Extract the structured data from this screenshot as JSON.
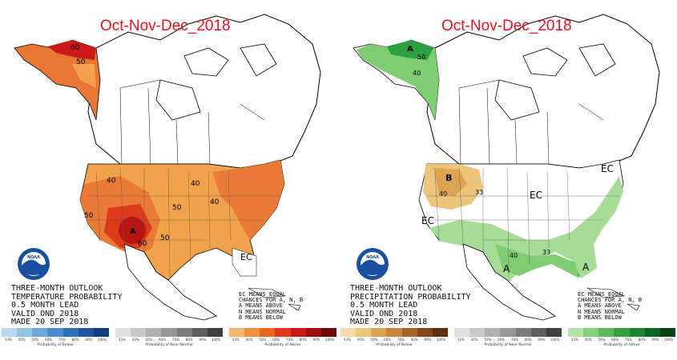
{
  "left_panel": {
    "title": "Oct-Nov-Dec_2018",
    "agency_logo": "noaa-logo",
    "outlook_lines": [
      "THREE-MONTH OUTLOOK",
      "TEMPERATURE PROBABILITY",
      "0.5 MONTH LEAD",
      "VALID OND 2018",
      "MADE 20 SEP 2018"
    ],
    "ec_legend_lines": [
      "EC MEANS EQUAL",
      "CHANCES FOR A, N, B",
      "A MEANS ABOVE",
      "N MEANS NORMAL",
      "B MEANS BELOW"
    ],
    "map_labels": {
      "alaska_60": "60",
      "alaska_50": "50",
      "west_40": "40",
      "west_50": "50",
      "sw_50": "50",
      "center_60": "60",
      "center_a": "A",
      "plains_50": "50",
      "mid_40": "40",
      "east_40": "40",
      "florida_ec": "EC"
    },
    "colorbars": [
      {
        "caption": "Probability of Below",
        "ticks": [
          "33%",
          "40%",
          "50%",
          "60%",
          "70%",
          "80%",
          "90%",
          "100%"
        ],
        "colors": [
          "#b8d9f0",
          "#93c4e8",
          "#6ba9dc",
          "#4a8cce",
          "#2d6fb8",
          "#1f55a0",
          "#143d80"
        ]
      },
      {
        "caption": "Probability of Near-Normal",
        "ticks": [
          "33%",
          "40%",
          "50%",
          "60%",
          "70%",
          "80%",
          "90%",
          "100%"
        ],
        "colors": [
          "#e0e0e0",
          "#c8c8c8",
          "#b0b0b0",
          "#969696",
          "#7c7c7c",
          "#5e5e5e",
          "#404040"
        ]
      },
      {
        "caption": "Probability of Above",
        "ticks": [
          "33%",
          "40%",
          "50%",
          "60%",
          "70%",
          "80%",
          "90%",
          "100%"
        ],
        "colors": [
          "#f5b56a",
          "#f09040",
          "#e8681e",
          "#dc3a1a",
          "#c81818",
          "#a01010",
          "#6e0808"
        ]
      }
    ]
  },
  "right_panel": {
    "title": "Oct-Nov-Dec_2018",
    "agency_logo": "noaa-logo",
    "outlook_lines": [
      "THREE-MONTH OUTLOOK",
      "PRECIPITATION PROBABILITY",
      "0.5 MONTH LEAD",
      "VALID OND 2018",
      "MADE 20 SEP 2018"
    ],
    "ec_legend_lines": [
      "EC MEANS EQUAL",
      "CHANCES FOR A, N, B",
      "A MEANS ABOVE",
      "N MEANS NORMAL",
      "B MEANS BELOW"
    ],
    "map_labels": {
      "alaska_a": "A",
      "alaska_50": "50",
      "alaska_40": "40",
      "nw_b": "B",
      "nw_40": "40",
      "nw_33": "33",
      "center_ec": "EC",
      "west_ec": "EC",
      "east_ec": "EC",
      "south_40": "40",
      "south_a": "A",
      "se_a": "A",
      "gulf_33": "33"
    },
    "colorbars": [
      {
        "caption": "Probability of Below",
        "ticks": [
          "33%",
          "40%",
          "50%",
          "60%",
          "70%",
          "80%",
          "90%",
          "100%"
        ],
        "colors": [
          "#f3dcaa",
          "#ecc47a",
          "#dca450",
          "#c8843a",
          "#a8622a",
          "#86461c",
          "#5e2e10"
        ]
      },
      {
        "caption": "Probability of Near-Normal",
        "ticks": [
          "33%",
          "40%",
          "50%",
          "60%",
          "70%",
          "80%",
          "90%",
          "100%"
        ],
        "colors": [
          "#e0e0e0",
          "#c8c8c8",
          "#b0b0b0",
          "#969696",
          "#7c7c7c",
          "#5e5e5e",
          "#404040"
        ]
      },
      {
        "caption": "Probability of Above",
        "ticks": [
          "33%",
          "40%",
          "50%",
          "60%",
          "70%",
          "80%",
          "90%",
          "100%"
        ],
        "colors": [
          "#b4e2a8",
          "#88cf7c",
          "#5cb858",
          "#34a040",
          "#1a8430",
          "#0c6622",
          "#064416"
        ]
      }
    ]
  }
}
